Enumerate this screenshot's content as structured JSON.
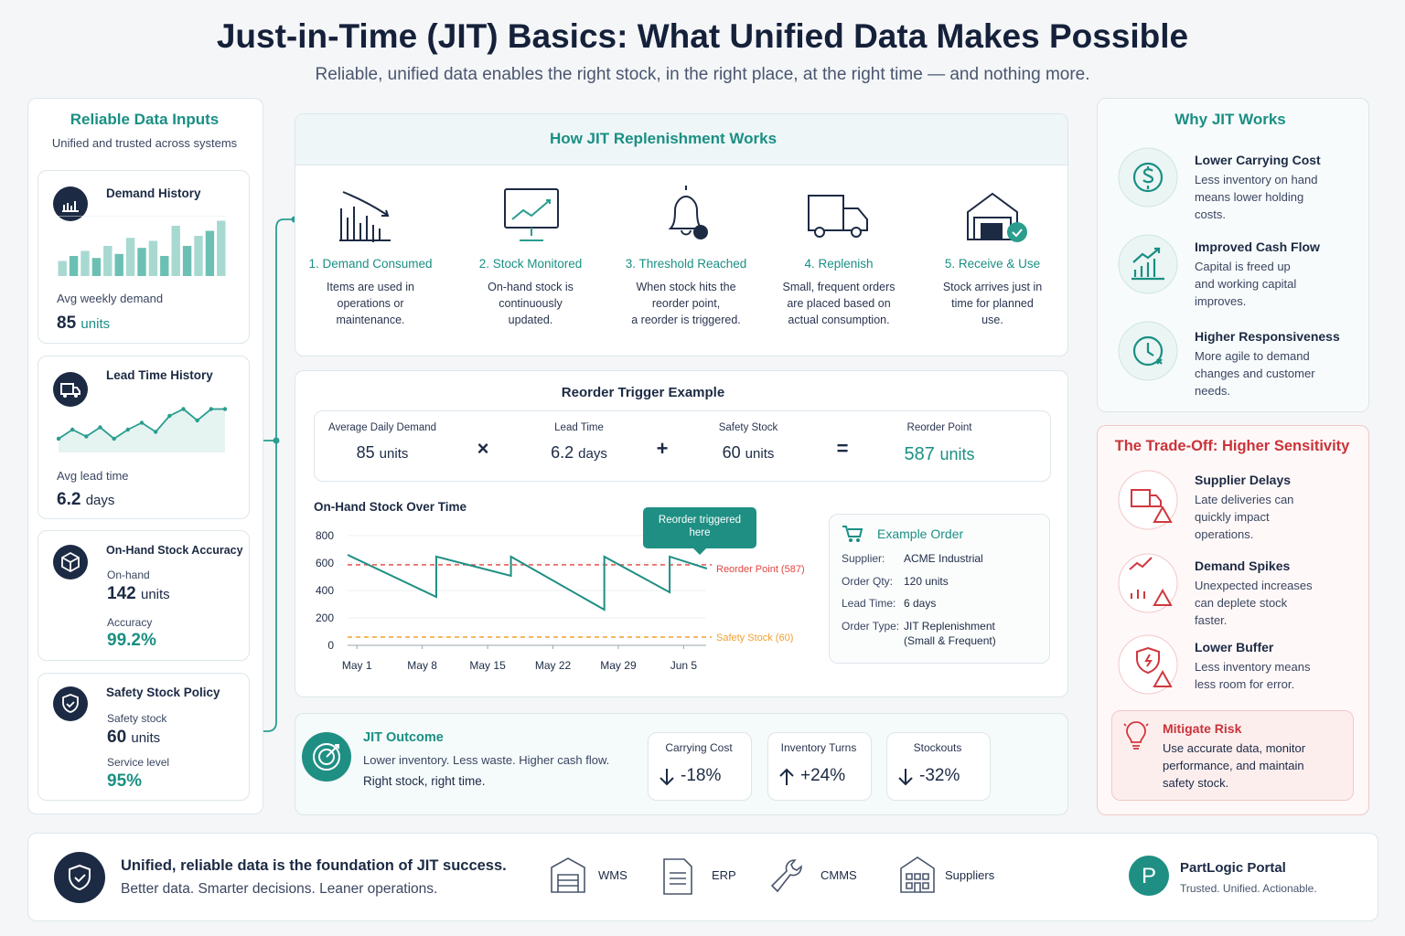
{
  "header": {
    "title": "Just-in-Time (JIT) Basics: What Unified Data Makes Possible",
    "subtitle": "Reliable, unified data enables the right stock, in the right place, at the right time — and nothing more."
  },
  "inputs": {
    "title": "Reliable Data Inputs",
    "subtitle": "Unified and trusted across systems",
    "demand": {
      "title": "Demand History",
      "label": "Avg weekly demand",
      "value": 85,
      "unit": "units",
      "chart": {
        "type": "bar",
        "color": "#6cc0b3",
        "ylim": [
          0,
          60
        ],
        "values": [
          15,
          20,
          25,
          18,
          30,
          22,
          38,
          28,
          35,
          20,
          50,
          30,
          40,
          45,
          55
        ]
      }
    },
    "lead": {
      "title": "Lead Time History",
      "label": "Avg lead time",
      "value": 6.2,
      "unit": "days",
      "chart": {
        "type": "line",
        "color": "#2a9d8f",
        "ylim": [
          0,
          12
        ],
        "values": [
          3,
          5,
          3.5,
          5.5,
          3,
          5,
          6.5,
          4.5,
          8,
          9.5,
          7,
          9.5,
          9.5
        ]
      }
    },
    "accuracy": {
      "title": "On-Hand Stock Accuracy",
      "onhand_label": "On-hand",
      "onhand_value": 142,
      "onhand_unit": "units",
      "accuracy_label": "Accuracy",
      "accuracy_value": "99.2%"
    },
    "safety": {
      "title": "Safety Stock Policy",
      "stock_label": "Safety stock",
      "stock_value": 60,
      "stock_unit": "units",
      "service_label": "Service level",
      "service_value": "95%"
    }
  },
  "process": {
    "title": "How JIT Replenishment Works",
    "steps": [
      {
        "title": "1. Demand Consumed",
        "desc": [
          "Items are used in",
          "operations or",
          "maintenance."
        ]
      },
      {
        "title": "2. Stock Monitored",
        "desc": [
          "On-hand stock is",
          "continuously",
          "updated."
        ]
      },
      {
        "title": "3. Threshold Reached",
        "desc": [
          "When stock hits the",
          "reorder point,",
          "a reorder is triggered."
        ]
      },
      {
        "title": "4. Replenish",
        "desc": [
          "Small, frequent orders",
          "are placed based on",
          "actual consumption."
        ]
      },
      {
        "title": "5. Receive & Use",
        "desc": [
          "Stock arrives just in",
          "time for planned",
          "use."
        ]
      }
    ]
  },
  "reorder": {
    "title": "Reorder Trigger Example",
    "terms": [
      {
        "label": "Average Daily Demand",
        "value": 85,
        "unit": "units"
      },
      {
        "label": "Lead Time",
        "value": 6.2,
        "unit": "days"
      },
      {
        "label": "Safety Stock",
        "value": 60,
        "unit": "units"
      },
      {
        "label": "Reorder Point",
        "value": 587,
        "unit": "units"
      }
    ],
    "operators": [
      "×",
      "+",
      "="
    ],
    "chart": {
      "type": "line",
      "title": "On-Hand Stock Over Time",
      "color": "#1f8f84",
      "x": [
        -1,
        8.5,
        8.5,
        16.5,
        16.5,
        26.5,
        26.5,
        33.5,
        33.5,
        37.5
      ],
      "values": [
        660,
        353,
        647,
        507,
        647,
        260,
        647,
        387,
        647,
        560
      ],
      "xlim": [
        -1,
        38
      ],
      "xticks": [
        {
          "value": 0,
          "label": "May 1"
        },
        {
          "value": 7,
          "label": "May 8"
        },
        {
          "value": 14,
          "label": "May 15"
        },
        {
          "value": 21,
          "label": "May 22"
        },
        {
          "value": 28,
          "label": "May 29"
        },
        {
          "value": 35,
          "label": "Jun 5"
        }
      ],
      "ylim": [
        0,
        800
      ],
      "yticks": [
        0,
        200,
        400,
        600,
        800
      ],
      "reference_lines": [
        {
          "value": 587,
          "label": "Reorder Point (587)",
          "color": "#e0453f"
        },
        {
          "value": 60,
          "label": "Safety Stock (60)",
          "color": "#f0a030"
        }
      ],
      "annotation": "Reorder triggered here"
    },
    "order": {
      "title": "Example Order",
      "rows": [
        {
          "label": "Supplier:",
          "value": [
            "ACME Industrial"
          ]
        },
        {
          "label": "Order Qty:",
          "value": [
            "120 units"
          ]
        },
        {
          "label": "Lead Time:",
          "value": [
            "6 days"
          ]
        },
        {
          "label": "Order Type:",
          "value": [
            "JIT Replenishment",
            "(Small & Frequent)"
          ]
        }
      ]
    }
  },
  "outcome": {
    "title": "JIT Outcome",
    "lines": [
      "Lower inventory. Less waste. Higher cash flow.",
      "Right stock, right time."
    ],
    "metrics": [
      {
        "label": "Carrying Cost",
        "value": "-18%"
      },
      {
        "label": "Inventory Turns",
        "value": "+24%"
      },
      {
        "label": "Stockouts",
        "value": "-32%"
      }
    ]
  },
  "why": {
    "title": "Why JIT Works",
    "items": [
      {
        "title": "Lower Carrying Cost",
        "desc": [
          "Less inventory on hand",
          "means lower holding",
          "costs."
        ]
      },
      {
        "title": "Improved Cash Flow",
        "desc": [
          "Capital is freed up",
          "and working capital",
          "improves."
        ]
      },
      {
        "title": "Higher Responsiveness",
        "desc": [
          "More agile to demand",
          "changes and customer",
          "needs."
        ]
      }
    ]
  },
  "tradeoff": {
    "title": "The Trade-Off: Higher Sensitivity",
    "items": [
      {
        "title": "Supplier Delays",
        "desc": [
          "Late deliveries can",
          "quickly impact",
          "operations."
        ]
      },
      {
        "title": "Demand Spikes",
        "desc": [
          "Unexpected increases",
          "can deplete stock",
          "faster."
        ]
      },
      {
        "title": "Lower Buffer",
        "desc": [
          "Less inventory means",
          "less room for error."
        ]
      }
    ],
    "mitigate": {
      "title": "Mitigate Risk",
      "desc": [
        "Use accurate data, monitor",
        "performance, and maintain",
        "safety stock."
      ]
    }
  },
  "footer": {
    "title": "Unified, reliable data is the foundation of JIT success.",
    "subtitle": "Better data. Smarter decisions. Leaner operations.",
    "systems": [
      "WMS",
      "ERP",
      "CMMS",
      "Suppliers"
    ],
    "portal": {
      "name": "PartLogic Portal",
      "tagline": "Trusted. Unified. Actionable.",
      "letter": "P"
    }
  }
}
